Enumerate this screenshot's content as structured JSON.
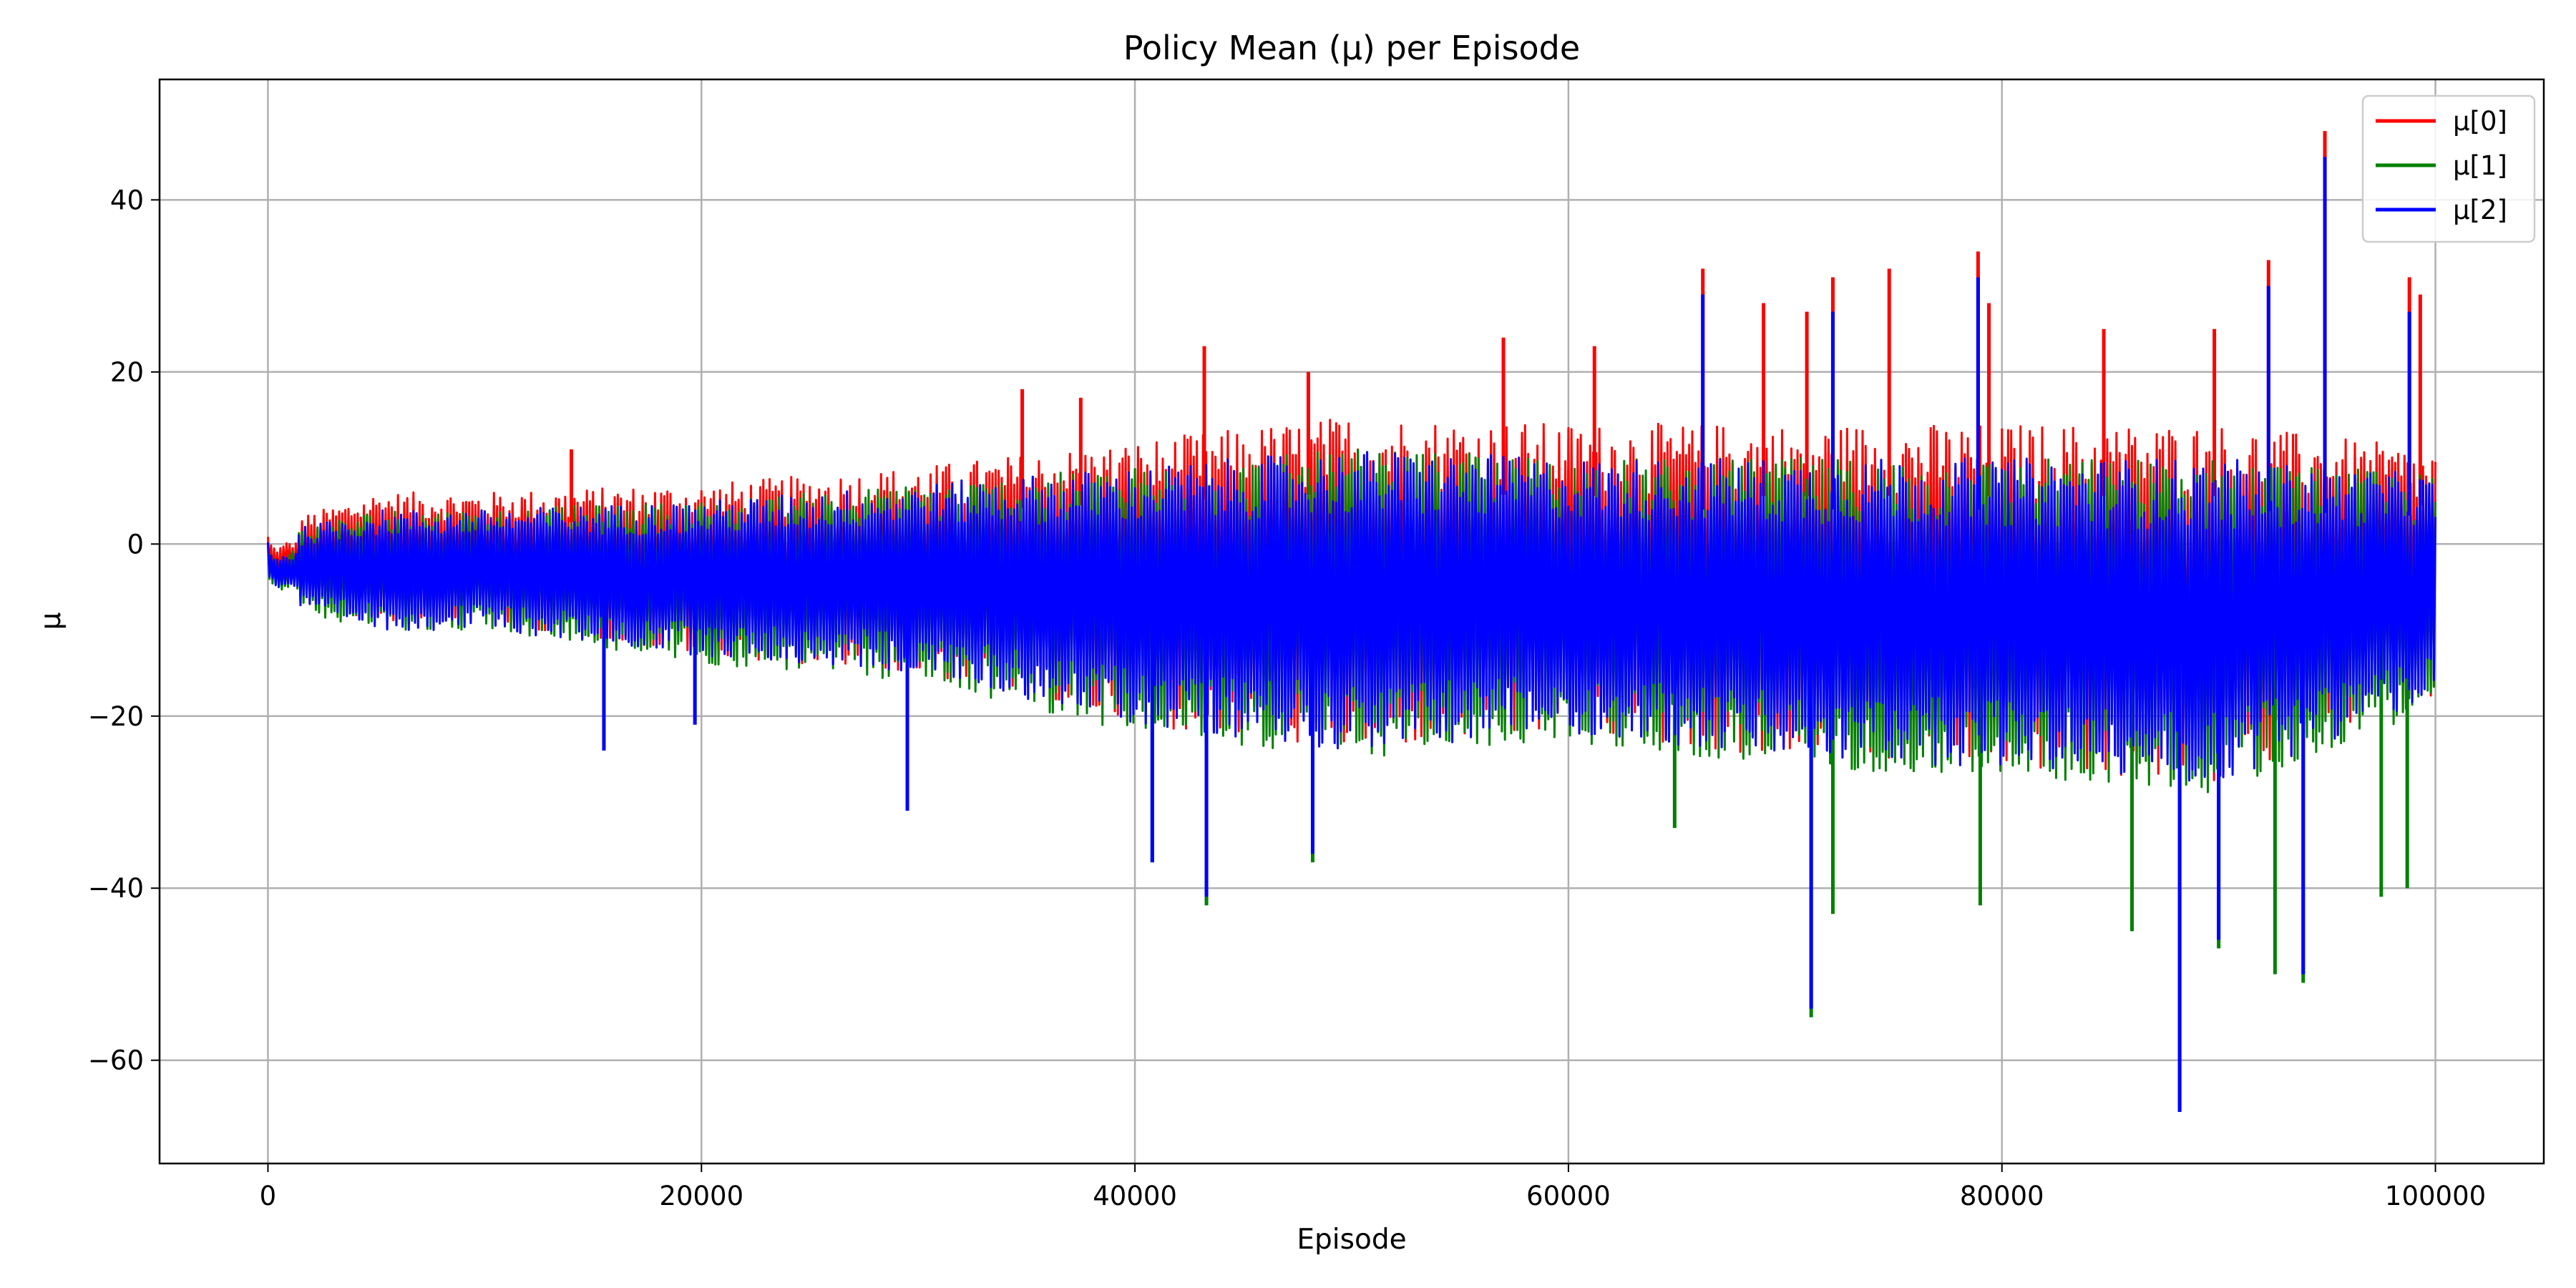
{
  "chart_data": {
    "type": "line",
    "title": "Policy Mean (μ) per Episode",
    "xlabel": "Episode",
    "ylabel": "μ",
    "xlim": [
      -5000,
      105000
    ],
    "ylim": [
      -72,
      54
    ],
    "xticks": [
      0,
      20000,
      40000,
      60000,
      80000,
      100000
    ],
    "yticks": [
      -60,
      -40,
      -20,
      0,
      20,
      40
    ],
    "ytick_labels": [
      "−60",
      "−40",
      "−20",
      "0",
      "20",
      "40"
    ],
    "grid": true,
    "legend": "top-right",
    "series": [
      {
        "name": "μ[0]",
        "color": "#ff0000",
        "envelope_x": [
          0,
          5000,
          10000,
          20000,
          30000,
          40000,
          50000,
          60000,
          70000,
          80000,
          90000,
          100000
        ],
        "envelope_upper": [
          2,
          6,
          6,
          7,
          9,
          12,
          15,
          14,
          14,
          14,
          14,
          11
        ],
        "envelope_lower": [
          -6,
          -9,
          -9,
          -13,
          -15,
          -21,
          -24,
          -22,
          -25,
          -26,
          -28,
          -18
        ],
        "spikes": [
          {
            "x": 14000,
            "y": 11
          },
          {
            "x": 34800,
            "y": 18
          },
          {
            "x": 37500,
            "y": 17
          },
          {
            "x": 43200,
            "y": 23
          },
          {
            "x": 48000,
            "y": 20
          },
          {
            "x": 57000,
            "y": 24
          },
          {
            "x": 61200,
            "y": 23
          },
          {
            "x": 66200,
            "y": 32
          },
          {
            "x": 69000,
            "y": 28
          },
          {
            "x": 71000,
            "y": 27
          },
          {
            "x": 72200,
            "y": 31
          },
          {
            "x": 74800,
            "y": 32
          },
          {
            "x": 78900,
            "y": 34
          },
          {
            "x": 79400,
            "y": 28
          },
          {
            "x": 84700,
            "y": 25
          },
          {
            "x": 89800,
            "y": 25
          },
          {
            "x": 92300,
            "y": 33
          },
          {
            "x": 94900,
            "y": 48
          },
          {
            "x": 98800,
            "y": 31
          },
          {
            "x": 99300,
            "y": 29
          }
        ]
      },
      {
        "name": "μ[1]",
        "color": "#008000",
        "envelope_x": [
          0,
          5000,
          10000,
          20000,
          30000,
          40000,
          50000,
          60000,
          70000,
          80000,
          90000,
          100000
        ],
        "envelope_upper": [
          1,
          4,
          4,
          5,
          7,
          9,
          11,
          10,
          10,
          10,
          10,
          8
        ],
        "envelope_lower": [
          -7,
          -10,
          -10,
          -14,
          -16,
          -22,
          -25,
          -23,
          -26,
          -27,
          -29,
          -19
        ],
        "spikes": [
          {
            "x": 40800,
            "y": -37
          },
          {
            "x": 43300,
            "y": -42
          },
          {
            "x": 48200,
            "y": -37
          },
          {
            "x": 64900,
            "y": -33
          },
          {
            "x": 71200,
            "y": -55
          },
          {
            "x": 72200,
            "y": -43
          },
          {
            "x": 79000,
            "y": -42
          },
          {
            "x": 86000,
            "y": -45
          },
          {
            "x": 88200,
            "y": -66
          },
          {
            "x": 90000,
            "y": -47
          },
          {
            "x": 92600,
            "y": -50
          },
          {
            "x": 93900,
            "y": -51
          },
          {
            "x": 97500,
            "y": -41
          },
          {
            "x": 98700,
            "y": -40
          }
        ]
      },
      {
        "name": "μ[2]",
        "color": "#0000ff",
        "envelope_x": [
          0,
          5000,
          10000,
          20000,
          30000,
          40000,
          50000,
          60000,
          70000,
          80000,
          90000,
          100000
        ],
        "envelope_upper": [
          1,
          4,
          4,
          5,
          7,
          9,
          11,
          10,
          10,
          10,
          10,
          8
        ],
        "envelope_lower": [
          -7,
          -10,
          -10,
          -13,
          -15,
          -21,
          -24,
          -22,
          -25,
          -26,
          -28,
          -18
        ],
        "spikes": [
          {
            "x": 15500,
            "y": -24
          },
          {
            "x": 19700,
            "y": -21
          },
          {
            "x": 29500,
            "y": -31
          },
          {
            "x": 40800,
            "y": -37
          },
          {
            "x": 43300,
            "y": -41
          },
          {
            "x": 48200,
            "y": -36
          },
          {
            "x": 66200,
            "y": 29
          },
          {
            "x": 71200,
            "y": -54
          },
          {
            "x": 72200,
            "y": 27
          },
          {
            "x": 78900,
            "y": 31
          },
          {
            "x": 88200,
            "y": -66
          },
          {
            "x": 90000,
            "y": -46
          },
          {
            "x": 92300,
            "y": 30
          },
          {
            "x": 93900,
            "y": -50
          },
          {
            "x": 94900,
            "y": 45
          },
          {
            "x": 98800,
            "y": 27
          }
        ]
      }
    ]
  }
}
